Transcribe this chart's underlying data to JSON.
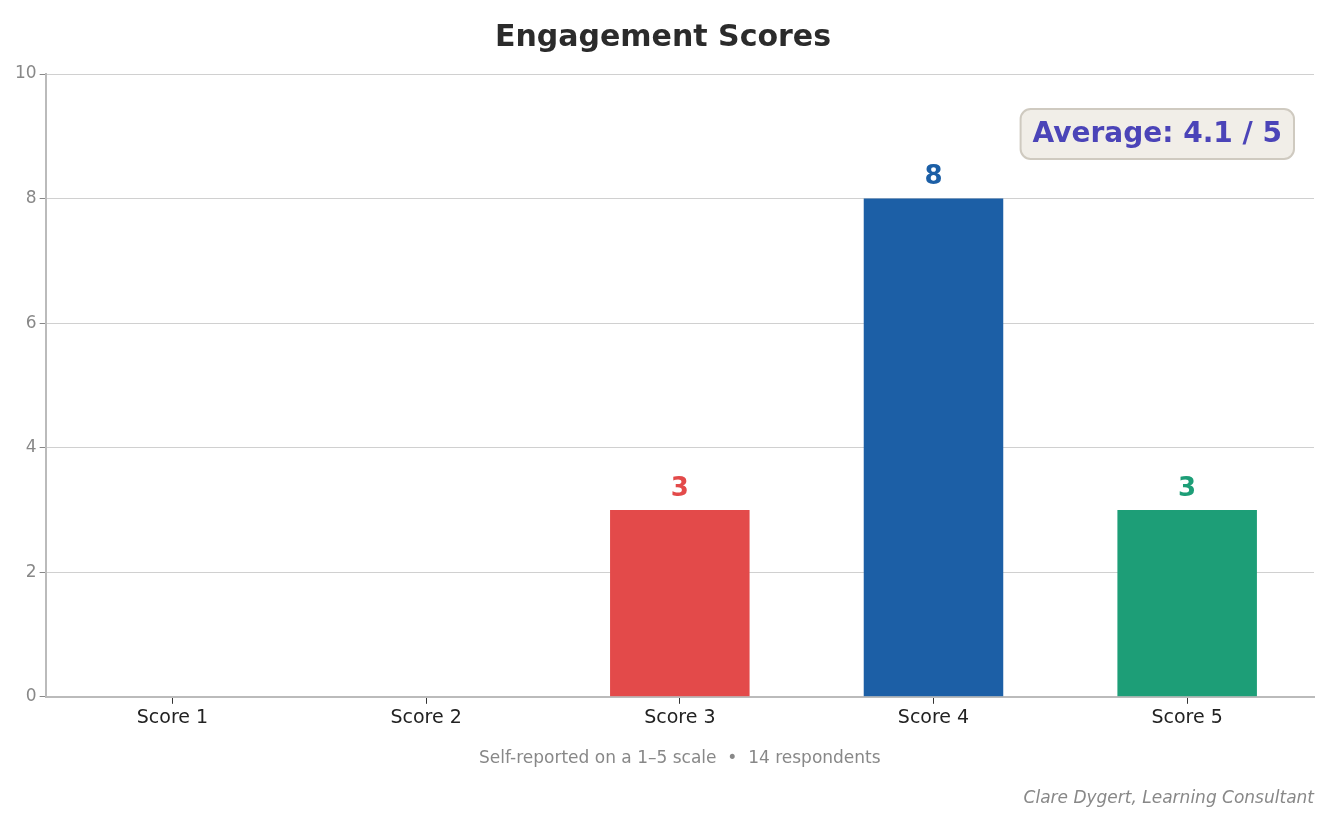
{
  "chart_data": {
    "type": "bar",
    "title": "Engagement Scores",
    "xlabel": "Self-reported on a 1–5 scale  •  14 respondents",
    "categories": [
      "Score 1",
      "Score 2",
      "Score 3",
      "Score 4",
      "Score 5"
    ],
    "values": [
      0,
      0,
      3,
      8,
      3
    ],
    "colors": [
      "#9e9e9e",
      "#9e9e9e",
      "#e34a4a",
      "#1c5fa6",
      "#1d9e77"
    ],
    "value_labels": [
      null,
      null,
      "3",
      "8",
      "3"
    ],
    "ylim": [
      0,
      10
    ],
    "yticks": [
      0,
      2,
      4,
      6,
      8,
      10
    ],
    "grid": "y",
    "legend": false,
    "annotations": [
      "Average: 4.1 / 5",
      "Clare Dygert, Learning Consultant"
    ]
  }
}
